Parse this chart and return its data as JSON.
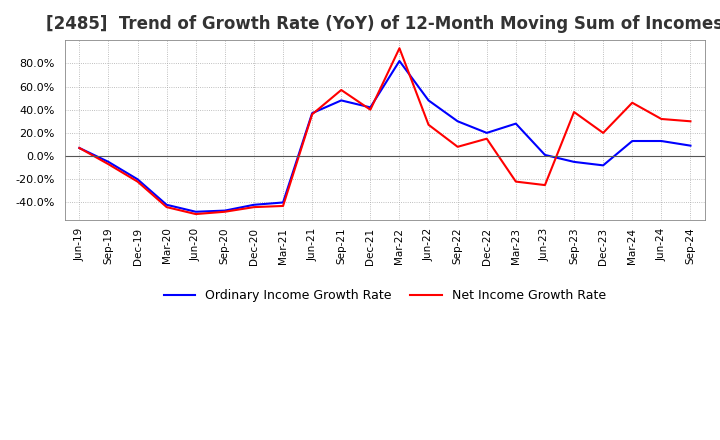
{
  "title": "[2485]  Trend of Growth Rate (YoY) of 12-Month Moving Sum of Incomes",
  "title_fontsize": 12,
  "ylim": [
    -55,
    100
  ],
  "yticks": [
    -40,
    -20,
    0,
    20,
    40,
    60,
    80
  ],
  "legend_labels": [
    "Ordinary Income Growth Rate",
    "Net Income Growth Rate"
  ],
  "line_colors": [
    "#0000ff",
    "#ff0000"
  ],
  "dates": [
    "Jun-19",
    "Sep-19",
    "Dec-19",
    "Mar-20",
    "Jun-20",
    "Sep-20",
    "Dec-20",
    "Mar-21",
    "Jun-21",
    "Sep-21",
    "Dec-21",
    "Mar-22",
    "Jun-22",
    "Sep-22",
    "Dec-22",
    "Mar-23",
    "Jun-23",
    "Sep-23",
    "Dec-23",
    "Mar-24",
    "Jun-24",
    "Sep-24"
  ],
  "ordinary_income": [
    7,
    -5,
    -20,
    -42,
    -48,
    -47,
    -42,
    -40,
    37,
    48,
    42,
    82,
    48,
    30,
    20,
    28,
    1,
    -5,
    -8,
    13,
    13,
    9
  ],
  "net_income": [
    7,
    -7,
    -22,
    -44,
    -50,
    -48,
    -44,
    -43,
    36,
    57,
    40,
    93,
    27,
    8,
    15,
    -22,
    -25,
    38,
    20,
    46,
    32,
    30
  ],
  "background_color": "#ffffff",
  "grid_color": "#aaaaaa",
  "plot_bg_color": "#ffffff",
  "title_color": "#333333"
}
